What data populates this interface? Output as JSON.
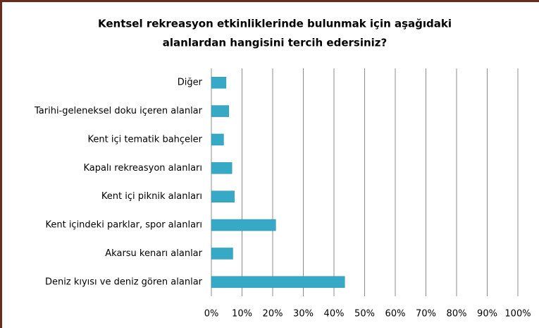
{
  "chart_data": {
    "type": "barh",
    "title": [
      "Kentsel rekreasyon etkinliklerinde bulunmak için aşağıdaki",
      "alanlardan hangisini tercih edersiniz?"
    ],
    "categories": [
      "Diğer",
      "Tarihi-geleneksel doku içeren alanlar",
      "Kent içi tematik bahçeler",
      "Kapalı rekreasyon alanları",
      "Kent içi piknik alanları",
      "Kent içindeki parklar, spor alanları",
      "Akarsu kenarı alanlar",
      "Deniz kıyısı ve deniz gören alanlar"
    ],
    "values": [
      4.8,
      5.7,
      4,
      6.7,
      7.5,
      21,
      7,
      43.5
    ],
    "color": "#35a9c6",
    "xlim": [
      0,
      100
    ],
    "xticks": [
      {
        "value": 0,
        "label": "0%"
      },
      {
        "value": 10,
        "label": "10%"
      },
      {
        "value": 20,
        "label": "20%"
      },
      {
        "value": 30,
        "label": "30%"
      },
      {
        "value": 40,
        "label": "40%"
      },
      {
        "value": 50,
        "label": "50%"
      },
      {
        "value": 60,
        "label": "60%"
      },
      {
        "value": 70,
        "label": "70%"
      },
      {
        "value": 80,
        "label": "80%"
      },
      {
        "value": 90,
        "label": "90%"
      },
      {
        "value": 100,
        "label": "100%"
      }
    ],
    "grid": true
  }
}
